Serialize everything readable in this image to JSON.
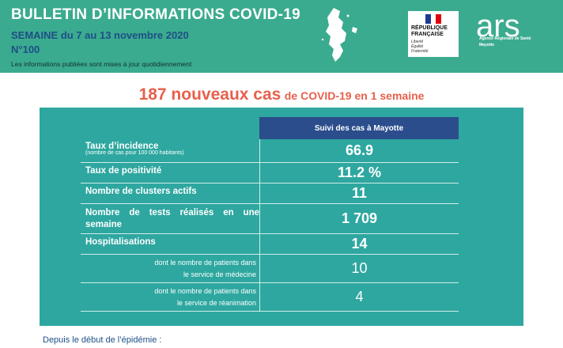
{
  "header": {
    "title": "BULLETIN D’INFORMATIONS COVID-19",
    "week": "SEMAINE du 7 au 13 novembre 2020",
    "number": "N°100",
    "note": "Les informations publiées sont mises à jour quotidiennement"
  },
  "logos": {
    "rf_line1": "RÉPUBLIQUE",
    "rf_line2": "FRANÇAISE",
    "rf_motto1": "Liberté",
    "rf_motto2": "Égalité",
    "rf_motto3": "Fraternité",
    "ars_text": "ars",
    "ars_sub": "Agence Régionale de Santé",
    "ars_region": "Mayotte"
  },
  "headline": {
    "big": "187 nouveaux cas",
    "small": "de COVID-19 en 1 semaine"
  },
  "table": {
    "column_header": "Suivi des cas à Mayotte",
    "rows": [
      {
        "label": "Taux d’incidence",
        "hint": "(nombre de cas pour 100 000 habitants)",
        "value": "66.9"
      },
      {
        "label": "Taux de positivité",
        "value": "11.2 %"
      },
      {
        "label": "Nombre de clusters actifs",
        "value": "11"
      },
      {
        "label": "Nombre de tests réalisés en une semaine",
        "value": "1 709"
      },
      {
        "label": "Hospitalisations",
        "value": "14"
      },
      {
        "label_line1": "dont le nombre de patients dans",
        "label_line2": "le service de médecine",
        "value": "10"
      },
      {
        "label_line1": "dont le nombre de patients dans",
        "label_line2": "le service de réanimation",
        "value": "4"
      }
    ]
  },
  "footer": {
    "text": "Depuis le début de l’épidémie :"
  },
  "colors": {
    "header_bg": "#3bab8f",
    "panel_bg": "#2ea7a0",
    "table_header_bg": "#2b4d8c",
    "headline": "#e8604c",
    "dark_blue": "#1d4f86"
  },
  "icons": {
    "map": "mayotte-map-icon",
    "flag": "french-flag-icon"
  }
}
